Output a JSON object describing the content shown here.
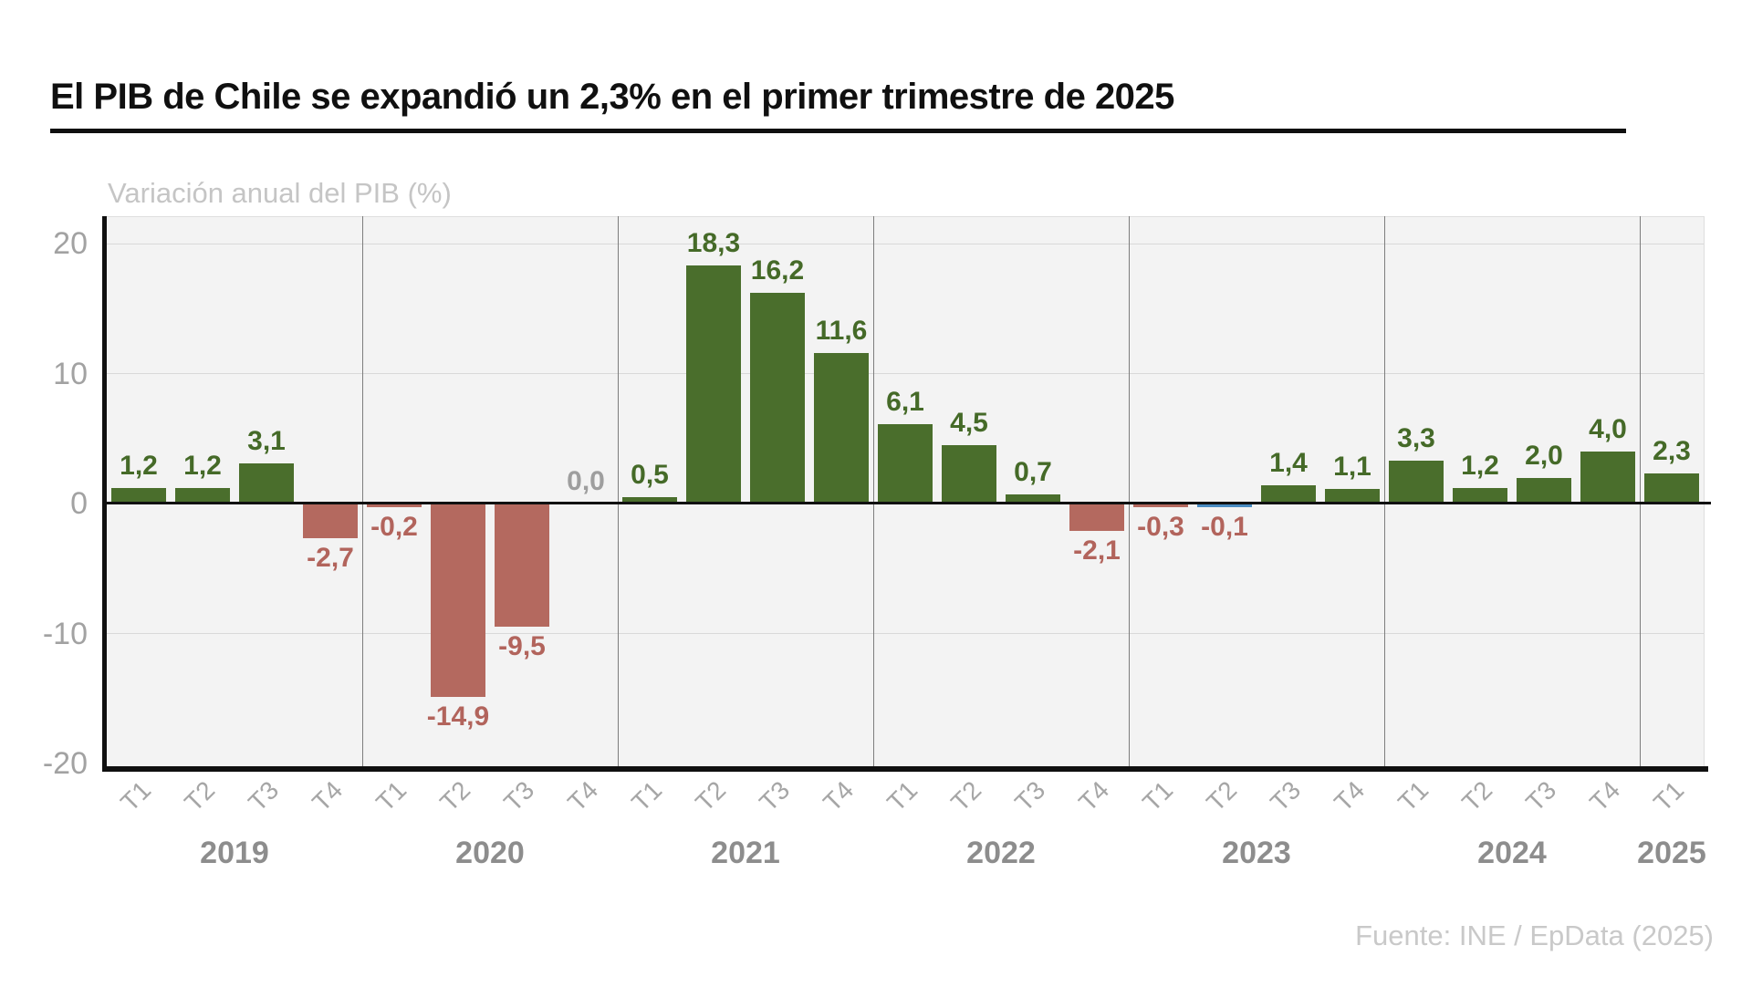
{
  "header": {
    "title": "El PIB de Chile se expandió un 2,3% en el primer trimestre de 2025"
  },
  "subtitle": "Variación anual del PIB (%)",
  "source": "Fuente: INE / EpData (2025)",
  "chart_data": {
    "type": "bar",
    "title": "El PIB de Chile se expandió un 2,3% en el primer trimestre de 2025",
    "axis_note": "Variación anual del PIB (%)",
    "ylim": [
      -20,
      22
    ],
    "grid": "horizontal gridlines plus vertical year separators",
    "legend": "none",
    "yticks": [
      {
        "value": 20,
        "label": "20"
      },
      {
        "value": 10,
        "label": "10"
      },
      {
        "value": 0,
        "label": "0"
      },
      {
        "value": -10,
        "label": "-10"
      },
      {
        "value": -20,
        "label": "-20"
      }
    ],
    "x_quarters": [
      "T1",
      "T2",
      "T3",
      "T4",
      "T1",
      "T2",
      "T3",
      "T4",
      "T1",
      "T2",
      "T3",
      "T4",
      "T1",
      "T2",
      "T3",
      "T4",
      "T1",
      "T2",
      "T3",
      "T4",
      "T1",
      "T2",
      "T3",
      "T4",
      "T1"
    ],
    "values": [
      1.2,
      1.2,
      3.1,
      -2.7,
      -0.2,
      -14.9,
      -9.5,
      0.0,
      0.5,
      18.3,
      16.2,
      11.6,
      6.1,
      4.5,
      0.7,
      -2.1,
      -0.3,
      -0.1,
      1.4,
      1.1,
      3.3,
      1.2,
      2.0,
      4.0,
      2.3
    ],
    "display_labels": [
      "1,2",
      "1,2",
      "3,1",
      "-2,7",
      "-0,2",
      "-14,9",
      "-9,5",
      "0,0",
      "0,5",
      "18,3",
      "16,2",
      "11,6",
      "6,1",
      "4,5",
      "0,7",
      "-2,1",
      "-0,3",
      "-0,1",
      "1,4",
      "1,1",
      "3,3",
      "1,2",
      "2,0",
      "4,0",
      "2,3"
    ],
    "year_groups": [
      {
        "label": "2019",
        "count": 4
      },
      {
        "label": "2020",
        "count": 4
      },
      {
        "label": "2021",
        "count": 4
      },
      {
        "label": "2022",
        "count": 4
      },
      {
        "label": "2023",
        "count": 4
      },
      {
        "label": "2024",
        "count": 4
      },
      {
        "label": "2025",
        "count": 1
      }
    ],
    "highlight_index": 17,
    "colors": {
      "positive": "#4a6e2c",
      "negative": "#b4695f",
      "highlight": "#4a8cc2",
      "positive_label": "#456a28",
      "negative_label": "#b2645c",
      "zero_label": "#9e9e9e",
      "plot_bg": "#f3f3f3",
      "gridline": "#d9d9d9",
      "year_separator": "#7d7d7d",
      "axis": "#101010",
      "tick_label": "#a2a2a2"
    }
  }
}
